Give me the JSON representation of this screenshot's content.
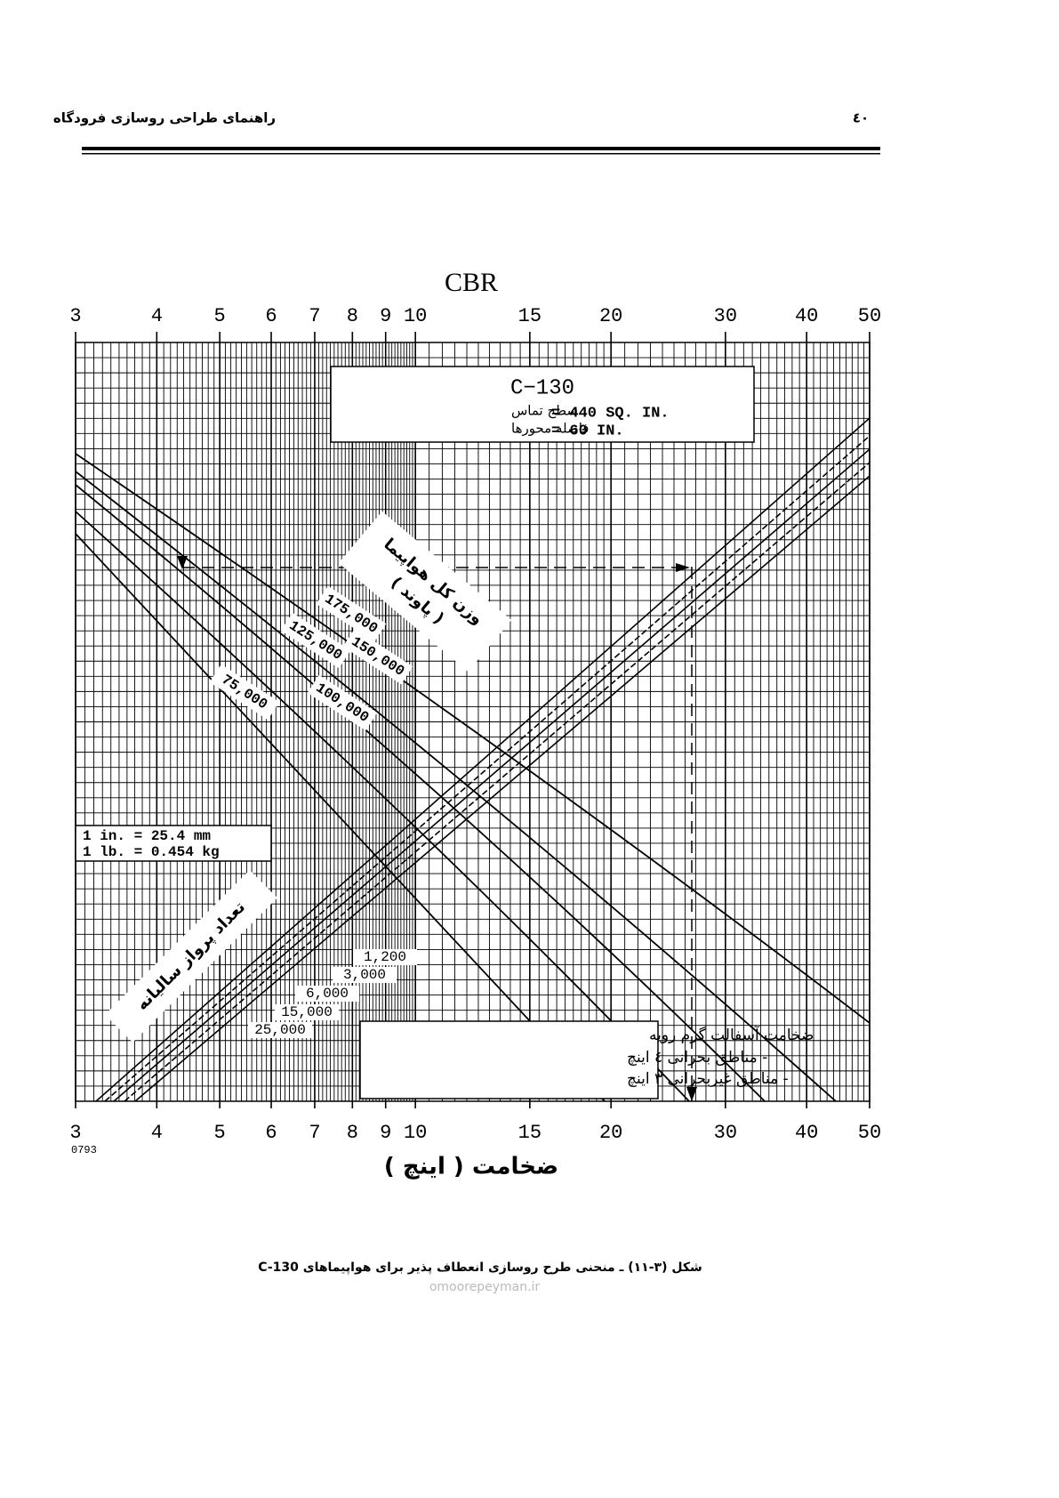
{
  "header": {
    "page_number": "٤٠",
    "title": "راهنمای طراحی روسازی فرودگاه"
  },
  "chart_data": {
    "type": "line",
    "x2label": "CBR",
    "xlabel": "ضخامت ( اینچ )",
    "xlim": [
      3,
      50
    ],
    "xticks": [
      3,
      4,
      5,
      6,
      7,
      8,
      9,
      10,
      15,
      20,
      30,
      40,
      50
    ],
    "log_x": true,
    "grid": true,
    "code": "0793",
    "info_box": {
      "title": "C−130",
      "rows": [
        [
          "سطح تماس",
          "= 440 SQ. IN."
        ],
        [
          "فاصله محورها",
          "= 60 IN."
        ]
      ]
    },
    "units_box": [
      "1 in. = 25.4 mm",
      "1 lb. = 0.454 kg"
    ],
    "note_box": {
      "title": "ضخامت آسفالت گرم رویه",
      "items": [
        "- مناطق بحرانی ٤ اینچ",
        "- مناطق غیربحرانی ٣ اینچ"
      ]
    },
    "weight_label": [
      "وزن کل هواپیما",
      "( پاوند )"
    ],
    "weights": [
      "175,000",
      "150,000",
      "125,000",
      "100,000",
      "75,000"
    ],
    "departures_label": "تعداد پرواز سالیانه",
    "departures": [
      "1,200",
      "3,000",
      "6,000",
      "15,000",
      "25,000"
    ]
  },
  "caption": "شکل (٣-١١) ـ منحنی طرح روسازی انعطاف پذیر برای هواپیماهای C-130",
  "watermark": "omoorepeyman.ir"
}
